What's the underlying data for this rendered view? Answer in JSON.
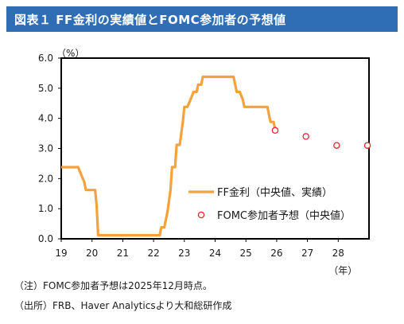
{
  "header": {
    "title": "図表１ FF金利の実績値とFOMC参加者の予想値"
  },
  "chart_data": {
    "type": "line",
    "unit_label": "（%）",
    "x_unit_label": "（年）",
    "xlim": [
      19,
      29
    ],
    "ylim": [
      0,
      6
    ],
    "x_ticks": [
      19,
      20,
      21,
      22,
      23,
      24,
      25,
      26,
      27,
      28
    ],
    "x_tick_labels": [
      "19",
      "20",
      "21",
      "22",
      "23",
      "24",
      "25",
      "26",
      "27",
      "28"
    ],
    "y_ticks": [
      0,
      1,
      2,
      3,
      4,
      5,
      6
    ],
    "y_tick_labels": [
      "0.0",
      "1.0",
      "2.0",
      "3.0",
      "4.0",
      "5.0",
      "6.0"
    ],
    "grid": false,
    "legend_position": "bottom-right",
    "series": [
      {
        "name": "FF金利（中央値、実績）",
        "kind": "line",
        "color": "#f5a13c",
        "points": [
          [
            19.0,
            2.38
          ],
          [
            19.55,
            2.38
          ],
          [
            19.65,
            2.12
          ],
          [
            19.75,
            1.88
          ],
          [
            19.8,
            1.62
          ],
          [
            20.1,
            1.62
          ],
          [
            20.15,
            1.12
          ],
          [
            20.2,
            0.12
          ],
          [
            22.2,
            0.12
          ],
          [
            22.25,
            0.38
          ],
          [
            22.35,
            0.38
          ],
          [
            22.45,
            0.88
          ],
          [
            22.55,
            1.62
          ],
          [
            22.6,
            2.38
          ],
          [
            22.7,
            2.38
          ],
          [
            22.75,
            3.12
          ],
          [
            22.85,
            3.12
          ],
          [
            22.95,
            3.88
          ],
          [
            23.0,
            4.38
          ],
          [
            23.1,
            4.38
          ],
          [
            23.2,
            4.62
          ],
          [
            23.3,
            4.88
          ],
          [
            23.4,
            4.88
          ],
          [
            23.45,
            5.12
          ],
          [
            23.55,
            5.12
          ],
          [
            23.6,
            5.38
          ],
          [
            24.6,
            5.38
          ],
          [
            24.7,
            4.88
          ],
          [
            24.8,
            4.88
          ],
          [
            24.9,
            4.62
          ],
          [
            24.95,
            4.38
          ],
          [
            25.7,
            4.38
          ],
          [
            25.75,
            4.12
          ],
          [
            25.8,
            3.88
          ],
          [
            25.9,
            3.88
          ],
          [
            25.95,
            3.62
          ]
        ]
      },
      {
        "name": "FOMC参加者予想（中央値）",
        "kind": "marker",
        "color": "#e8242c",
        "points": [
          [
            25.95,
            3.6
          ],
          [
            26.95,
            3.4
          ],
          [
            27.95,
            3.1
          ],
          [
            28.95,
            3.1
          ]
        ]
      }
    ]
  },
  "notes": {
    "note1": "（注）FOMC参加者予想は2025年12月時点。",
    "note2": "（出所）FRB、Haver Analyticsより大和総研作成"
  }
}
